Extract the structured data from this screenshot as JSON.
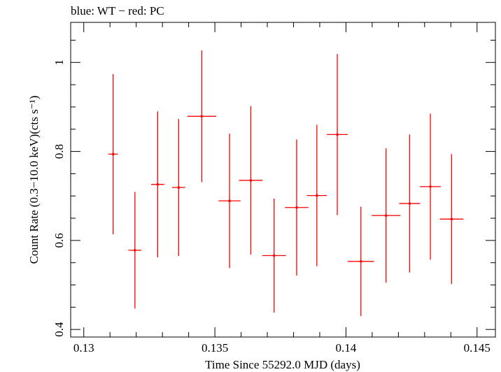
{
  "chart_data": {
    "type": "scatter",
    "title": "blue: WT − red: PC",
    "xlabel": "Time Since 55292.0 MJD (days)",
    "ylabel": "Count Rate (0.3−10.0 keV)(cts s⁻¹)",
    "xlim": [
      0.1295,
      0.1457
    ],
    "ylim": [
      0.383,
      1.09
    ],
    "xticks": [
      0.13,
      0.135,
      0.14,
      0.145
    ],
    "xtick_labels": [
      "0.13",
      "0.135",
      "0.14",
      "0.145"
    ],
    "yticks": [
      0.4,
      0.6,
      0.8,
      1.0
    ],
    "ytick_labels": [
      "0.4",
      "0.6",
      "0.8",
      "1"
    ],
    "grid": false,
    "series": [
      {
        "color": "#ff0000",
        "points": [
          {
            "x": 0.13112,
            "xerr": 0.00018,
            "y": 0.794,
            "yerr": 0.18
          },
          {
            "x": 0.13195,
            "xerr": 0.00025,
            "y": 0.578,
            "yerr": 0.131
          },
          {
            "x": 0.13282,
            "xerr": 0.00025,
            "y": 0.726,
            "yerr": 0.164
          },
          {
            "x": 0.13362,
            "xerr": 0.00025,
            "y": 0.719,
            "yerr": 0.154
          },
          {
            "x": 0.1345,
            "xerr": 0.00055,
            "y": 0.879,
            "yerr": 0.148
          },
          {
            "x": 0.13556,
            "xerr": 0.00042,
            "y": 0.689,
            "yerr": 0.151
          },
          {
            "x": 0.13637,
            "xerr": 0.00045,
            "y": 0.735,
            "yerr": 0.167
          },
          {
            "x": 0.13726,
            "xerr": 0.00045,
            "y": 0.566,
            "yerr": 0.128
          },
          {
            "x": 0.13812,
            "xerr": 0.00045,
            "y": 0.674,
            "yerr": 0.153
          },
          {
            "x": 0.13889,
            "xerr": 0.00038,
            "y": 0.701,
            "yerr": 0.159
          },
          {
            "x": 0.13967,
            "xerr": 0.0004,
            "y": 0.838,
            "yerr": 0.181
          },
          {
            "x": 0.14057,
            "xerr": 0.0005,
            "y": 0.553,
            "yerr": 0.123
          },
          {
            "x": 0.14153,
            "xerr": 0.00055,
            "y": 0.656,
            "yerr": 0.151
          },
          {
            "x": 0.14243,
            "xerr": 0.0004,
            "y": 0.683,
            "yerr": 0.155
          },
          {
            "x": 0.14322,
            "xerr": 0.0004,
            "y": 0.721,
            "yerr": 0.164
          },
          {
            "x": 0.14403,
            "xerr": 0.00045,
            "y": 0.648,
            "yerr": 0.146
          }
        ]
      }
    ]
  }
}
